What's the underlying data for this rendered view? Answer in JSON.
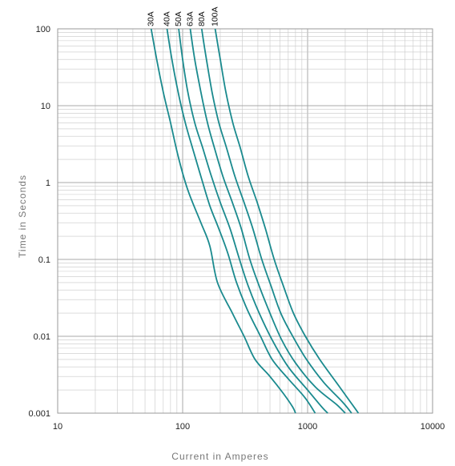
{
  "chart_data": {
    "type": "line",
    "title": "",
    "xlabel": "Current in Amperes",
    "ylabel": "Time in Seconds",
    "x_scale": "log",
    "y_scale": "log",
    "xlim": [
      10,
      10000
    ],
    "ylim": [
      0.001,
      100
    ],
    "x_ticks": [
      "10",
      "100",
      "1000",
      "10000"
    ],
    "y_ticks": [
      "0.001",
      "0.01",
      "0.1",
      "1",
      "10",
      "100"
    ],
    "grid": true,
    "line_color": "#1a8a8e",
    "grid_color": "#c8c8c8",
    "series": [
      {
        "name": "30A",
        "points": [
          [
            56,
            100
          ],
          [
            62,
            40
          ],
          [
            70,
            15
          ],
          [
            80,
            6
          ],
          [
            92,
            2.2
          ],
          [
            110,
            0.8
          ],
          [
            140,
            0.3
          ],
          [
            165,
            0.15
          ],
          [
            190,
            0.05
          ],
          [
            250,
            0.02
          ],
          [
            310,
            0.01
          ],
          [
            380,
            0.005
          ],
          [
            500,
            0.003
          ],
          [
            640,
            0.0018
          ],
          [
            760,
            0.0012
          ],
          [
            800,
            0.001
          ]
        ]
      },
      {
        "name": "40A",
        "points": [
          [
            75,
            100
          ],
          [
            82,
            40
          ],
          [
            92,
            15
          ],
          [
            105,
            6
          ],
          [
            120,
            2.8
          ],
          [
            140,
            1.2
          ],
          [
            165,
            0.5
          ],
          [
            195,
            0.25
          ],
          [
            230,
            0.12
          ],
          [
            270,
            0.05
          ],
          [
            330,
            0.022
          ],
          [
            420,
            0.01
          ],
          [
            520,
            0.005
          ],
          [
            700,
            0.0028
          ],
          [
            950,
            0.0016
          ],
          [
            1150,
            0.001
          ]
        ]
      },
      {
        "name": "50A",
        "points": [
          [
            93,
            100
          ],
          [
            100,
            40
          ],
          [
            110,
            15
          ],
          [
            125,
            6
          ],
          [
            145,
            2.8
          ],
          [
            170,
            1.2
          ],
          [
            200,
            0.55
          ],
          [
            240,
            0.25
          ],
          [
            285,
            0.1
          ],
          [
            335,
            0.045
          ],
          [
            410,
            0.02
          ],
          [
            520,
            0.009
          ],
          [
            700,
            0.004
          ],
          [
            1000,
            0.002
          ],
          [
            1300,
            0.0012
          ],
          [
            1450,
            0.001
          ]
        ]
      },
      {
        "name": "63A",
        "points": [
          [
            115,
            100
          ],
          [
            125,
            40
          ],
          [
            140,
            15
          ],
          [
            158,
            6
          ],
          [
            180,
            2.8
          ],
          [
            210,
            1.2
          ],
          [
            250,
            0.55
          ],
          [
            295,
            0.25
          ],
          [
            345,
            0.1
          ],
          [
            410,
            0.045
          ],
          [
            500,
            0.02
          ],
          [
            620,
            0.009
          ],
          [
            800,
            0.0045
          ],
          [
            1150,
            0.0022
          ],
          [
            1700,
            0.0013
          ],
          [
            2000,
            0.001
          ]
        ]
      },
      {
        "name": "80A",
        "points": [
          [
            142,
            100
          ],
          [
            155,
            40
          ],
          [
            172,
            15
          ],
          [
            195,
            6
          ],
          [
            225,
            2.8
          ],
          [
            262,
            1.2
          ],
          [
            310,
            0.55
          ],
          [
            365,
            0.25
          ],
          [
            430,
            0.1
          ],
          [
            510,
            0.045
          ],
          [
            610,
            0.02
          ],
          [
            760,
            0.01
          ],
          [
            980,
            0.005
          ],
          [
            1350,
            0.0025
          ],
          [
            1900,
            0.0014
          ],
          [
            2250,
            0.001
          ]
        ]
      },
      {
        "name": "100A",
        "points": [
          [
            182,
            100
          ],
          [
            200,
            40
          ],
          [
            222,
            15
          ],
          [
            252,
            6
          ],
          [
            290,
            2.8
          ],
          [
            335,
            1.2
          ],
          [
            395,
            0.55
          ],
          [
            460,
            0.25
          ],
          [
            540,
            0.1
          ],
          [
            640,
            0.045
          ],
          [
            770,
            0.02
          ],
          [
            960,
            0.01
          ],
          [
            1250,
            0.005
          ],
          [
            1700,
            0.0025
          ],
          [
            2200,
            0.0014
          ],
          [
            2550,
            0.001
          ]
        ]
      }
    ]
  }
}
